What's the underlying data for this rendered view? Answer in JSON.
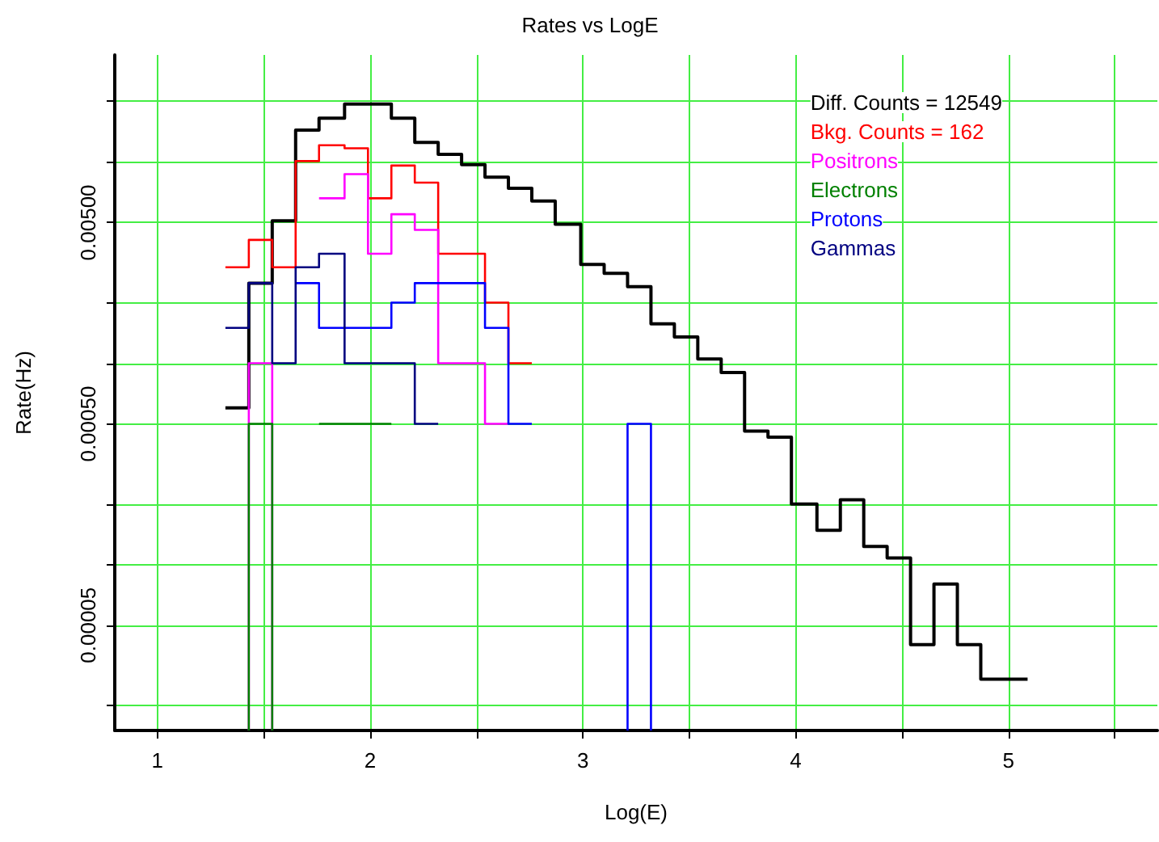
{
  "chart_data": {
    "type": "histogram",
    "title": "Rates vs LogE",
    "xlabel": "Log(E)",
    "ylabel": "Rate(Hz)",
    "log": "y",
    "grid": true,
    "legend": "top right",
    "xlim": [
      0.8,
      5.7
    ],
    "xticks": [
      1,
      {
        "value": 1.5,
        "label": null
      },
      2,
      {
        "value": 2.5,
        "label": null
      },
      3,
      {
        "value": 3.5,
        "label": null
      },
      4,
      {
        "value": 4.5,
        "label": null
      },
      5,
      {
        "value": 5.5,
        "label": null
      }
    ],
    "ylim": [
      1.5e-05,
      0.034
    ],
    "yticks": [
      {
        "value": 2e-05,
        "label": null
      },
      {
        "value": 5e-05,
        "label": "0.00005"
      },
      {
        "value": 0.0001,
        "label": null
      },
      {
        "value": 0.0002,
        "label": null
      },
      {
        "value": 0.0005,
        "label": "0.00050"
      },
      {
        "value": 0.001,
        "label": null
      },
      {
        "value": 0.002,
        "label": null
      },
      {
        "value": 0.005,
        "label": "0.00500"
      },
      {
        "value": 0.01,
        "label": null
      },
      {
        "value": 0.02,
        "label": null
      }
    ],
    "bins": [
      1.32,
      1.43,
      1.54,
      1.65,
      1.76,
      1.88,
      1.99,
      2.1,
      2.21,
      2.32,
      2.43,
      2.54,
      2.65,
      2.76,
      2.87,
      2.99,
      3.1,
      3.21,
      3.32,
      3.43,
      3.54,
      3.65,
      3.76,
      3.87,
      3.98,
      4.1,
      4.21,
      4.32,
      4.43,
      4.54,
      4.65,
      4.76,
      4.87,
      4.98,
      5.09
    ],
    "series": [
      {
        "name": "Diff. Counts = 12549",
        "color": "#000000",
        "values": [
          0.0006,
          0.0025,
          0.0051,
          0.0144,
          0.0165,
          0.0194,
          0.0194,
          0.0165,
          0.0125,
          0.0109,
          0.0097,
          0.0084,
          0.0074,
          0.0064,
          0.0049,
          0.0031,
          0.0028,
          0.0024,
          0.00157,
          0.00135,
          0.00105,
          0.0009,
          0.00046,
          0.00043,
          0.0002,
          0.000148,
          0.00021,
          0.000123,
          0.000108,
          4e-05,
          8e-05,
          4e-05,
          2.7e-05,
          2.7e-05
        ]
      },
      {
        "name": "Bkg. Counts = 162",
        "color": "#ff0000",
        "bins": [
          1.32,
          1.43,
          1.54,
          1.65,
          1.76,
          1.88,
          1.99,
          2.1,
          2.21,
          2.32,
          2.43,
          2.54,
          2.65,
          2.76
        ],
        "values": [
          0.003,
          0.0041,
          0.003,
          0.0101,
          0.0121,
          0.0117,
          0.0066,
          0.0096,
          0.0079,
          0.0035,
          0.0035,
          0.002,
          0.001
        ]
      },
      {
        "name": "Positrons",
        "color": "#ff00ff",
        "bins": [
          1.76,
          1.88,
          1.99,
          2.1,
          2.21,
          2.32,
          2.43,
          2.54,
          2.65
        ],
        "values": [
          0.0066,
          0.0087,
          0.0035,
          0.0055,
          0.0046,
          0.001,
          0.001,
          0.0005
        ]
      },
      {
        "color": "#ff00ff",
        "bins": [
          1.43,
          1.54
        ],
        "values": [
          0.001
        ]
      },
      {
        "name": "Electrons",
        "color": "#008000",
        "bins": [
          1.76,
          1.88,
          1.99,
          2.1
        ],
        "values": [
          0.0005,
          0.0005,
          0.0005
        ]
      },
      {
        "color": "#008000",
        "bins": [
          1.43,
          1.54
        ],
        "values": [
          0.0005
        ]
      },
      {
        "name": "Protons",
        "color": "#0000ff",
        "bins": [
          1.65,
          1.76,
          1.88,
          1.99,
          2.1,
          2.21,
          2.32,
          2.43,
          2.54,
          2.65,
          2.76
        ],
        "values": [
          0.0025,
          0.0015,
          0.0015,
          0.0015,
          0.002,
          0.0025,
          0.0025,
          0.0025,
          0.0015,
          0.0005
        ]
      },
      {
        "color": "#0000ff",
        "bins": [
          3.21,
          3.32
        ],
        "values": [
          0.0005
        ]
      },
      {
        "name": "Gammas",
        "color": "#000080",
        "bins": [
          1.32,
          1.43,
          1.54,
          1.65,
          1.76,
          1.88,
          1.99,
          2.1,
          2.21,
          2.32
        ],
        "values": [
          0.0015,
          0.0025,
          0.001,
          0.003,
          0.0035,
          0.001,
          0.001,
          0.001,
          0.0005
        ]
      }
    ]
  }
}
